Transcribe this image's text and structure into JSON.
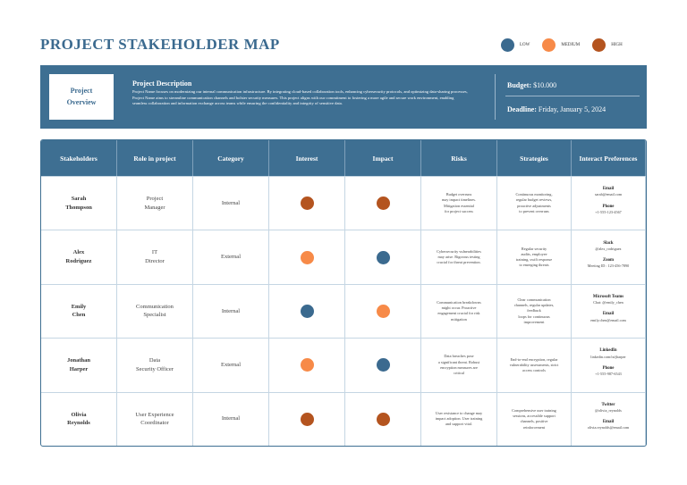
{
  "header": {
    "title": "PROJECT STAKEHOLDER MAP"
  },
  "legend": [
    {
      "label": "LOW",
      "color": "#3b6a8f"
    },
    {
      "label": "MEDIUM",
      "color": "#f78a48"
    },
    {
      "label": "HIGH",
      "color": "#b4541f"
    }
  ],
  "overview": {
    "label": "Project\nOverview",
    "heading": "Project Description",
    "description": "Project Name focuses on modernizing our internal communication infrastructure. By integrating cloud-based collaboration tools, enhancing cybersecurity protocols, and optimizing data-sharing processes, Project Name aims to streamline communication channels and bolster security measures. This project aligns with our commitment to fostering a more agile and secure work environment, enabling seamless collaboration and information exchange across teams while ensuring the confidentiality and integrity of sensitive data.",
    "budget_label": "Budget:",
    "budget": "$10.000",
    "deadline_label": "Deadline:",
    "deadline": "Friday, January 5, 2024"
  },
  "table": {
    "columns": [
      "Stakeholders",
      "Role in project",
      "Category",
      "Interest",
      "Impact",
      "Risks",
      "Strategies",
      "Interact Preferences"
    ],
    "rows": [
      {
        "stakeholder": "Sarah\nThompson",
        "role": "Project\nManager",
        "category": "Internal",
        "interest": "HIGH",
        "impact": "HIGH",
        "risks": "Budget overruns\nmay impact timelines.\nMitigation essential\nfor project success",
        "strategies": "Continuous monitoring,\nregular budget reviews,\nproactive adjustments\nto prevent overruns",
        "preferences": [
          {
            "label": "Email",
            "value": "sarah@email.com"
          },
          {
            "label": "Phone",
            "value": "+1-555-123-4567"
          }
        ]
      },
      {
        "stakeholder": "Alex\nRodriguez",
        "role": "IT\nDirector",
        "category": "External",
        "interest": "MEDIUM",
        "impact": "LOW",
        "risks": "Cybersecurity vulnerabilities\nmay arise. Rigorous testing\ncrucial for threat prevention.",
        "strategies": "Regular security\naudits, employee\ntraining, swift response\nto emerging threats",
        "preferences": [
          {
            "label": "Slack",
            "value": "@alex_rodriguez"
          },
          {
            "label": "Zoom",
            "value": "Meeting ID : 123-456-7890"
          }
        ]
      },
      {
        "stakeholder": "Emily\nChen",
        "role": "Communication\nSpecialist",
        "category": "Internal",
        "interest": "LOW",
        "impact": "MEDIUM",
        "risks": "Communication breakdowns\nmight occur. Proactive\nengagement crucial for risk\nmitigation",
        "strategies": "Clear communication\nchannels, regular updates,\nfeedback\nloops for continuous\nimprovement",
        "preferences": [
          {
            "label": "Microsoft Teams",
            "value": "Chat: @emily_chen"
          },
          {
            "label": "Email",
            "value": "emily.chen@email.com"
          }
        ]
      },
      {
        "stakeholder": "Jonathan\nHarper",
        "role": "Data\nSecurity Officer",
        "category": "External",
        "interest": "MEDIUM",
        "impact": "LOW",
        "risks": "Data breaches pose\na significant threat. Robust\nencryption measures are\ncritical",
        "strategies": "End-to-end encryption, regular\nvulnerability assessments, strict\naccess controls",
        "preferences": [
          {
            "label": "LinkedIn",
            "value": "linkedin.com/in/jharper"
          },
          {
            "label": "Phone",
            "value": "+1-555-987-6543"
          }
        ]
      },
      {
        "stakeholder": "Olivia\nReynolds",
        "role": "User Experience\nCoordinator",
        "category": "Internal",
        "interest": "HIGH",
        "impact": "HIGH",
        "risks": "User resistance to change may\nimpact adoption. User training\nand support vital.",
        "strategies": "Comprehensive user training\nsessions, accessible support\nchannels, positive\nreinforcement",
        "preferences": [
          {
            "label": "Twitter",
            "value": "@olivia_reynolds"
          },
          {
            "label": "Email",
            "value": "olivia.reynolds@email.com"
          }
        ]
      }
    ]
  }
}
